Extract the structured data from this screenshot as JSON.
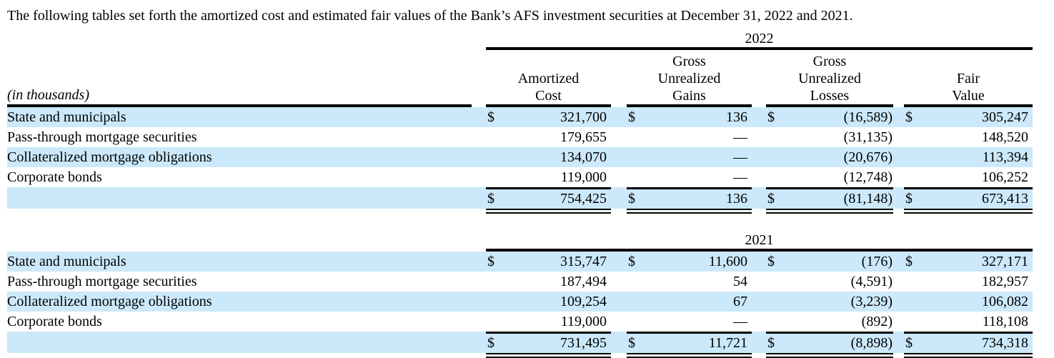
{
  "intro": "The following tables set forth the amortized cost and estimated fair values of the Bank’s AFS investment securities at December 31, 2022 and 2021.",
  "units_note": "(in thousands)",
  "currency": "$",
  "columns": [
    "Amortized\nCost",
    "Gross\nUnrealized\nGains",
    "Gross\nUnrealized\nLosses",
    "Fair\nValue"
  ],
  "colors": {
    "row_highlight": "#cbe9fa",
    "rule": "#000000"
  },
  "tables": [
    {
      "year": "2022",
      "rows": [
        {
          "label": "State and municipals",
          "values": [
            "321,700",
            "136",
            "(16,589)",
            "305,247"
          ]
        },
        {
          "label": "Pass-through mortgage securities",
          "values": [
            "179,655",
            "—",
            "(31,135)",
            "148,520"
          ]
        },
        {
          "label": "Collateralized mortgage obligations",
          "values": [
            "134,070",
            "—",
            "(20,676)",
            "113,394"
          ]
        },
        {
          "label": "Corporate bonds",
          "values": [
            "119,000",
            "—",
            "(12,748)",
            "106,252"
          ]
        }
      ],
      "total": {
        "values": [
          "754,425",
          "136",
          "(81,148)",
          "673,413"
        ]
      }
    },
    {
      "year": "2021",
      "rows": [
        {
          "label": "State and municipals",
          "values": [
            "315,747",
            "11,600",
            "(176)",
            "327,171"
          ]
        },
        {
          "label": "Pass-through mortgage securities",
          "values": [
            "187,494",
            "54",
            "(4,591)",
            "182,957"
          ]
        },
        {
          "label": "Collateralized mortgage obligations",
          "values": [
            "109,254",
            "67",
            "(3,239)",
            "106,082"
          ]
        },
        {
          "label": "Corporate bonds",
          "values": [
            "119,000",
            "—",
            "(892)",
            "118,108"
          ]
        }
      ],
      "total": {
        "values": [
          "731,495",
          "11,721",
          "(8,898)",
          "734,318"
        ]
      }
    }
  ]
}
